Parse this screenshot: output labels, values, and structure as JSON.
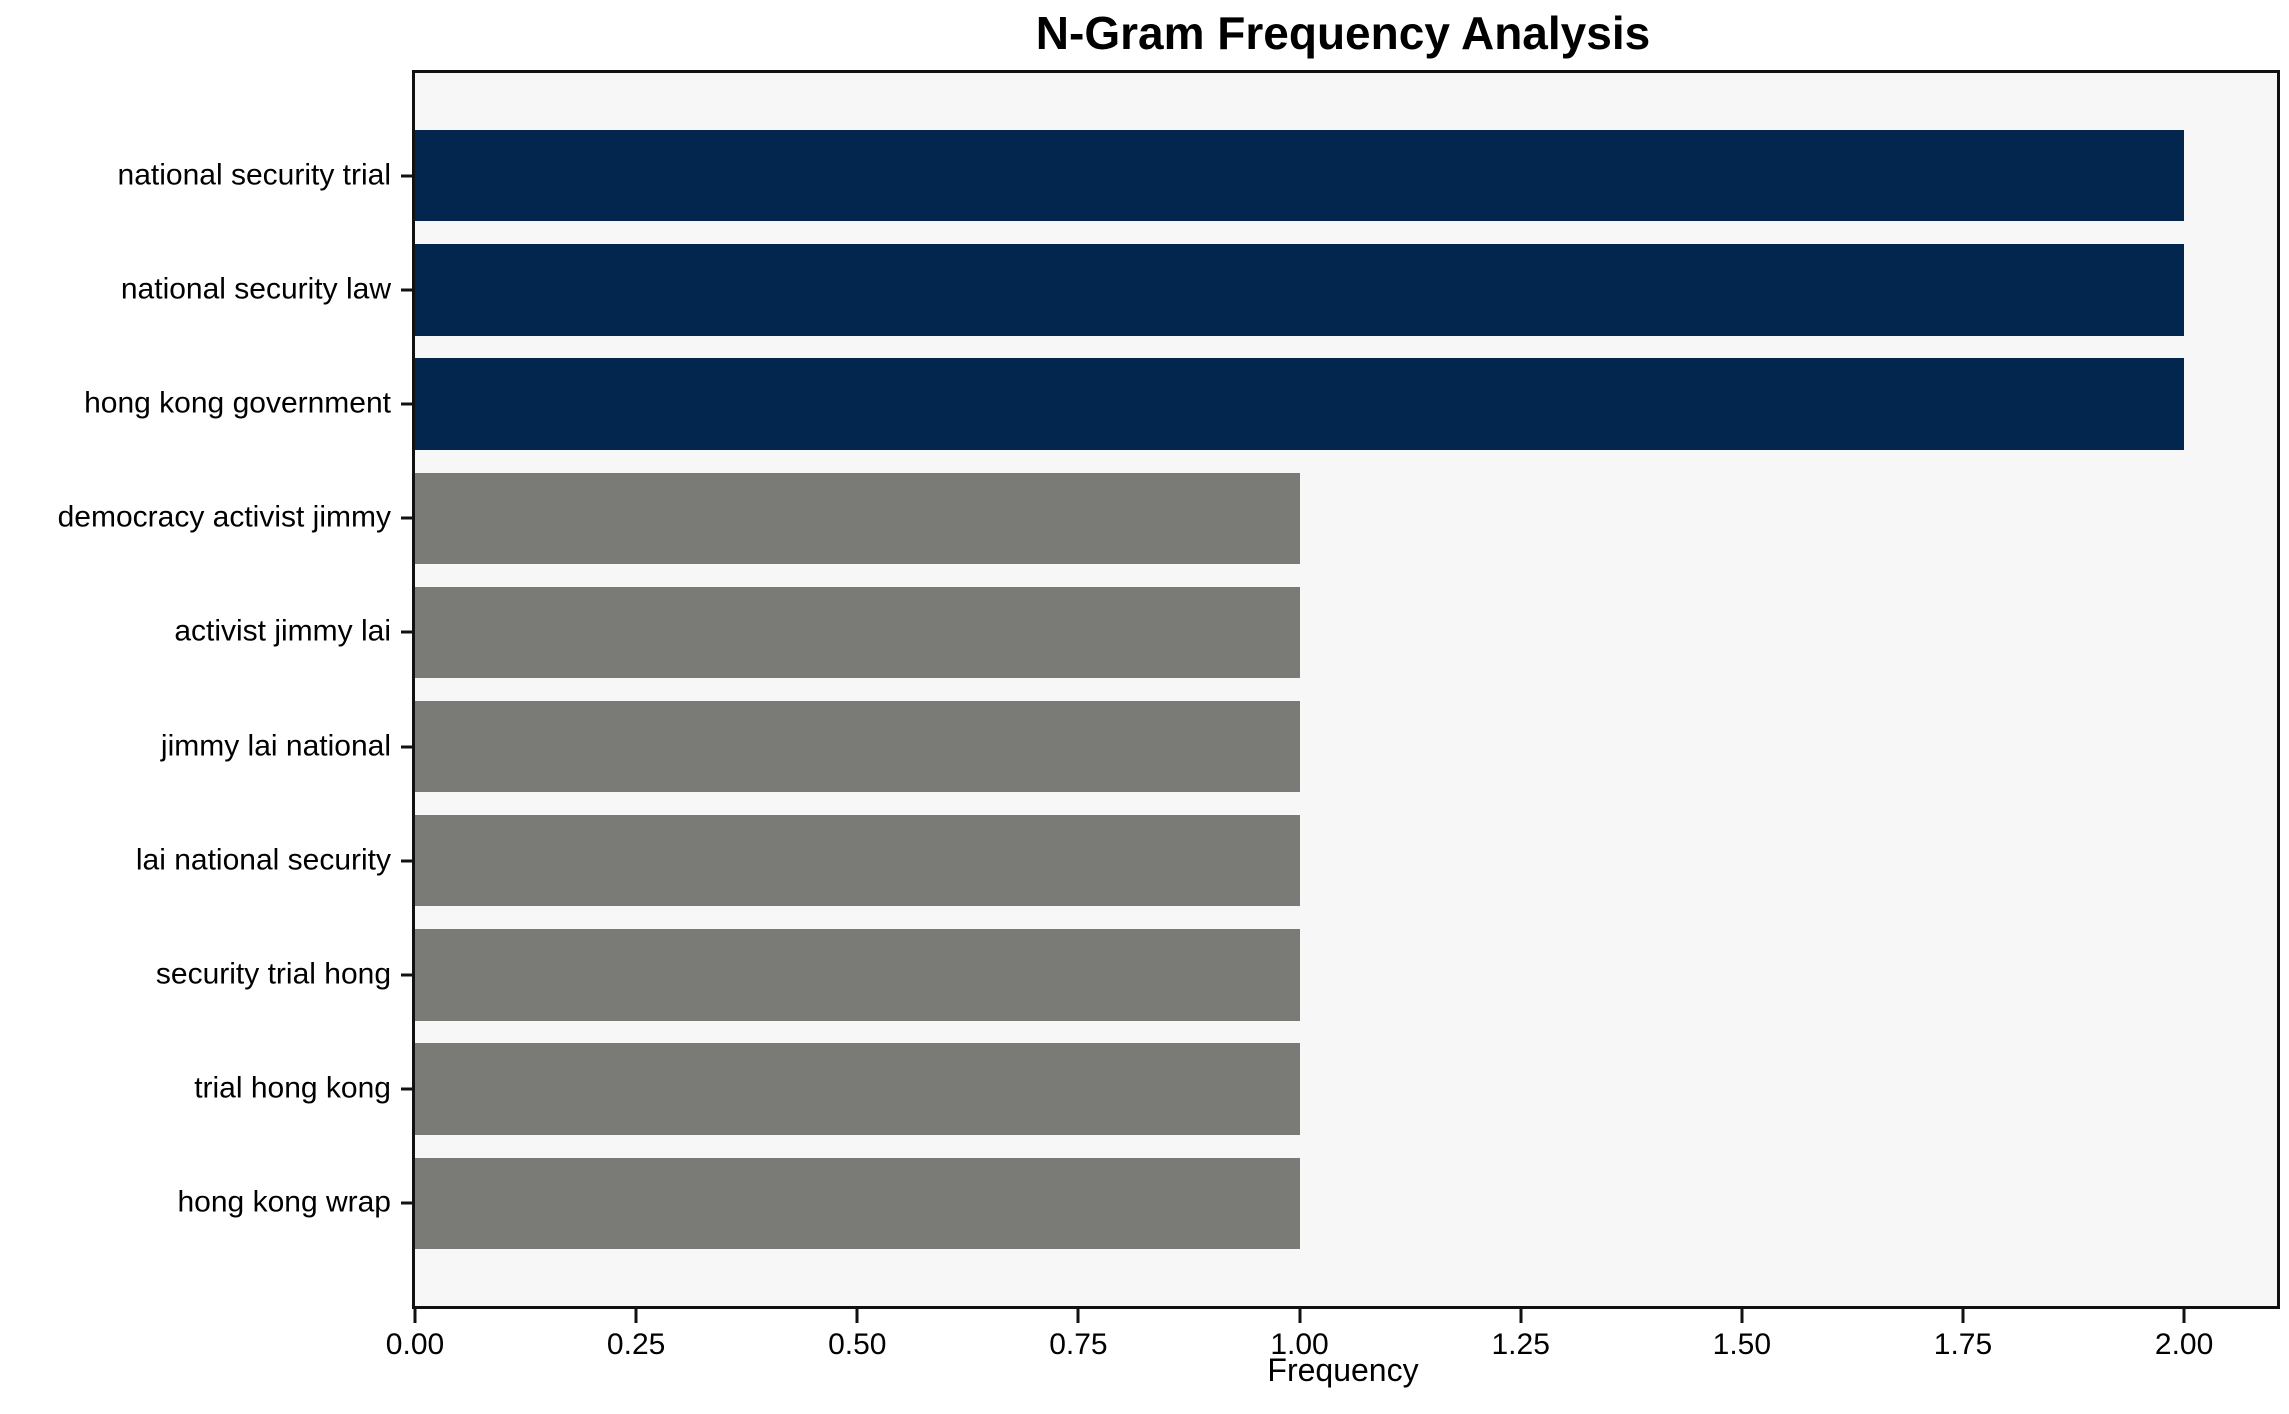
{
  "chart_data": {
    "type": "bar",
    "orientation": "horizontal",
    "title": "N-Gram Frequency Analysis",
    "xlabel": "Frequency",
    "ylabel": "",
    "categories": [
      "national security trial",
      "national security law",
      "hong kong government",
      "democracy activist jimmy",
      "activist jimmy lai",
      "jimmy lai national",
      "lai national security",
      "security trial hong",
      "trial hong kong",
      "hong kong wrap"
    ],
    "values": [
      2,
      2,
      2,
      1,
      1,
      1,
      1,
      1,
      1,
      1
    ],
    "bar_colors": [
      "#02264d",
      "#02264d",
      "#02264d",
      "#7a7a77",
      "#7a7a77",
      "#7a7a77",
      "#7a7a77",
      "#7a7a77",
      "#7a7a77",
      "#7a7a77"
    ],
    "xlim": [
      0,
      2.105
    ],
    "xticks": [
      0,
      0.25,
      0.5,
      0.75,
      1.0,
      1.25,
      1.5,
      1.75,
      2.0
    ],
    "xtick_labels": [
      "0.00",
      "0.25",
      "0.50",
      "0.75",
      "1.00",
      "1.25",
      "1.50",
      "1.75",
      "2.00"
    ],
    "grid": false,
    "legend": null,
    "plot_background": "#f7f7f7",
    "figure_background": "#ffffff",
    "spine_color": "#111111"
  }
}
